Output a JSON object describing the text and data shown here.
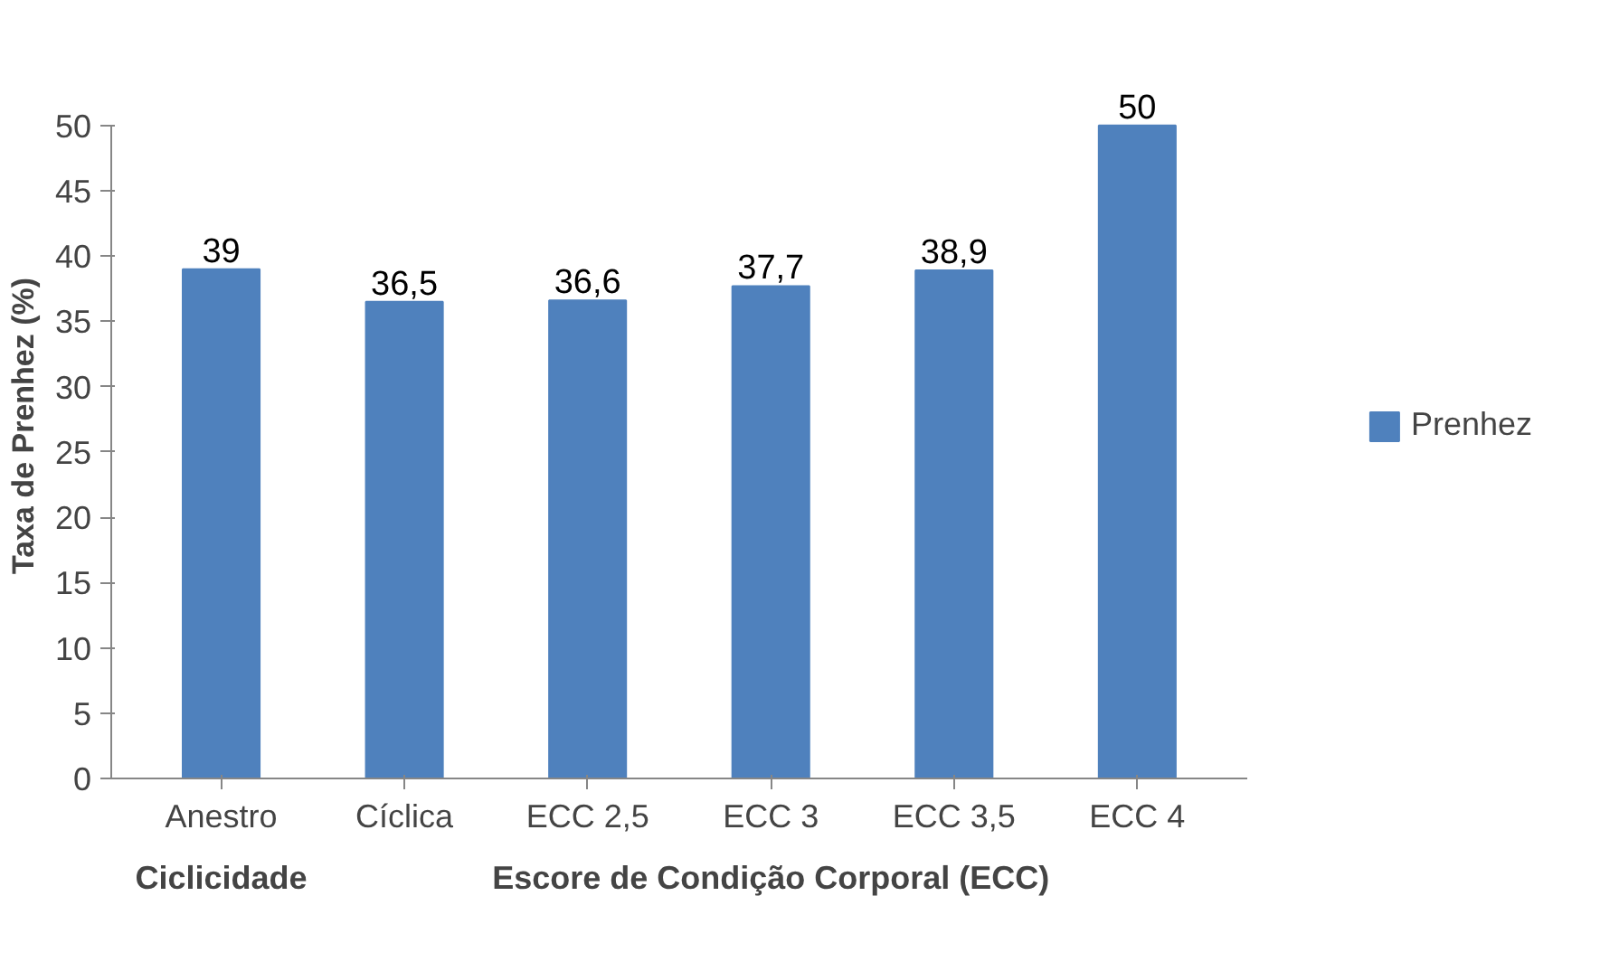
{
  "chart_data": {
    "type": "bar",
    "ylabel": "Taxa de Prenhez (%)",
    "categories": [
      "Anestro",
      "Cíclica",
      "ECC 2,5",
      "ECC 3",
      "ECC 3,5",
      "ECC 4"
    ],
    "series": [
      {
        "name": "Prenhez",
        "color": "#4f81bd",
        "values": [
          39,
          36.5,
          36.6,
          37.7,
          38.9,
          50
        ],
        "value_labels": [
          "39",
          "36,5",
          "36,6",
          "37,7",
          "38,9",
          "50"
        ]
      }
    ],
    "ylim": [
      0,
      50
    ],
    "yticks": [
      0,
      5,
      10,
      15,
      20,
      25,
      30,
      35,
      40,
      45,
      50
    ],
    "annotations": [
      "Ciclicidade",
      "Escore de Condição Corporal (ECC)"
    ],
    "legend": "right",
    "grid": false
  }
}
